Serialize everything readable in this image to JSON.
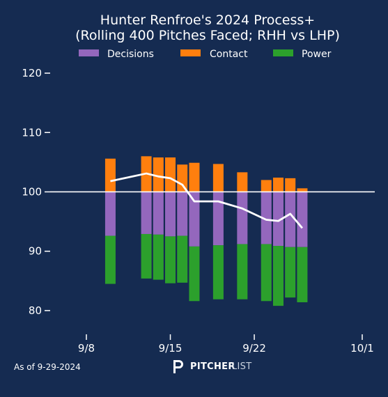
{
  "chart_data": {
    "type": "bar",
    "title": [
      "Hunter Renfroe's 2024 Process+",
      "(Rolling 400 Pitches Faced; RHH vs LHP)"
    ],
    "xlabel": "",
    "ylabel": "",
    "baseline": 100,
    "ylim": [
      76,
      122
    ],
    "xlim": [
      "2024-09-08",
      "2024-10-01"
    ],
    "yticks": [
      80,
      90,
      100,
      110,
      120
    ],
    "xticks": [
      "2024-09-08",
      "2024-09-15",
      "2024-09-22",
      "2024-10-01"
    ],
    "xtick_labels": [
      "9/8",
      "9/15",
      "9/22",
      "10/1"
    ],
    "legend_position": "top-center",
    "colors": {
      "Decisions": "#9467bd",
      "Contact": "#ff7f0e",
      "Power": "#2ca02c",
      "line": "#ffffff",
      "baseline": "#ffffff"
    },
    "dates": [
      "2024-09-10",
      "2024-09-13",
      "2024-09-14",
      "2024-09-15",
      "2024-09-16",
      "2024-09-17",
      "2024-09-19",
      "2024-09-21",
      "2024-09-23",
      "2024-09-24",
      "2024-09-25",
      "2024-09-26"
    ],
    "series": [
      {
        "name": "Decisions",
        "values": [
          -7.4,
          -7.1,
          -7.2,
          -7.5,
          -7.4,
          -9.2,
          -9.0,
          -8.8,
          -8.8,
          -9.1,
          -9.3,
          -9.3
        ]
      },
      {
        "name": "Contact",
        "values": [
          5.6,
          6.0,
          5.8,
          5.8,
          4.6,
          4.9,
          4.7,
          3.3,
          2.0,
          2.4,
          2.3,
          0.6
        ]
      },
      {
        "name": "Power",
        "values": [
          -8.1,
          -7.5,
          -7.6,
          -7.9,
          -7.9,
          -9.2,
          -9.1,
          -9.3,
          -9.6,
          -10.1,
          -8.5,
          -9.3
        ]
      }
    ],
    "line": {
      "dates": [
        "2024-09-10",
        "2024-09-13",
        "2024-09-14",
        "2024-09-15",
        "2024-09-16",
        "2024-09-17",
        "2024-09-19",
        "2024-09-21",
        "2024-09-23",
        "2024-09-24",
        "2024-09-25",
        "2024-09-26"
      ],
      "values": [
        101.8,
        103.1,
        102.6,
        102.3,
        101.2,
        98.4,
        98.4,
        97.2,
        95.3,
        95.1,
        96.3,
        93.9
      ]
    }
  },
  "footer": {
    "as_of": "As of 9-29-2024",
    "brand_strong": "PITCHER",
    "brand_light": "LIST"
  }
}
